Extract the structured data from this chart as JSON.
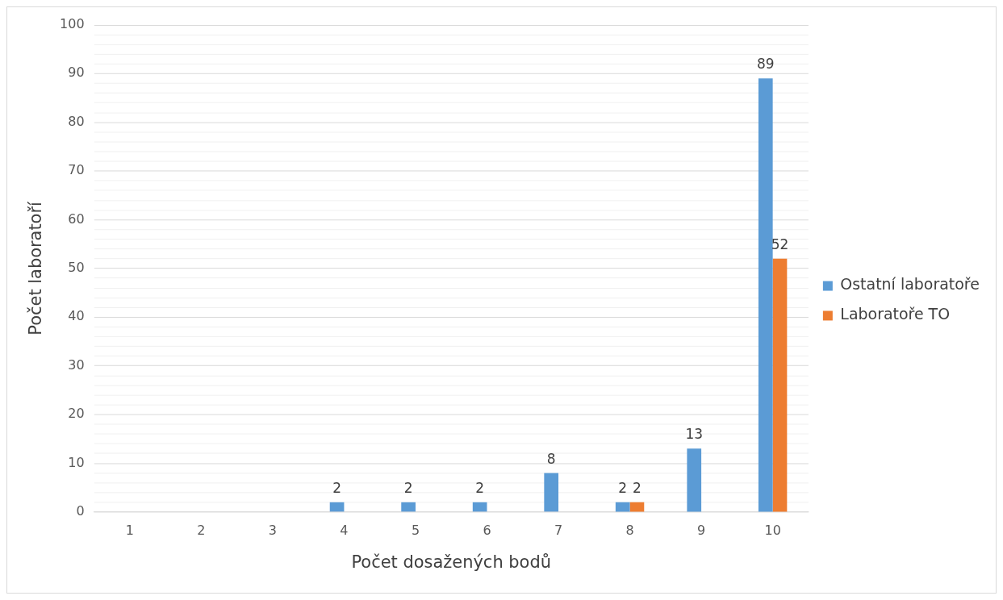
{
  "chart_data": {
    "type": "bar",
    "xlabel": "Počet dosažených bodů",
    "ylabel": "Počet laboratoří",
    "categories": [
      "1",
      "2",
      "3",
      "4",
      "5",
      "6",
      "7",
      "8",
      "9",
      "10"
    ],
    "series": [
      {
        "name": "Ostatní laboratoře",
        "color": "#5b9bd5",
        "values": [
          0,
          0,
          0,
          2,
          2,
          2,
          8,
          2,
          13,
          89
        ],
        "value_labels": [
          null,
          null,
          null,
          "2",
          "2",
          "2",
          "8",
          "2",
          "13",
          "89"
        ]
      },
      {
        "name": "Laboratoře TO",
        "color": "#ed7d31",
        "values": [
          0,
          0,
          0,
          0,
          0,
          0,
          0,
          2,
          0,
          52
        ],
        "value_labels": [
          null,
          null,
          null,
          null,
          null,
          null,
          null,
          "2",
          null,
          "52"
        ]
      }
    ],
    "ylim": [
      0,
      100
    ],
    "yticks": [
      0,
      {
        "value": 2,
        "label": null
      },
      {
        "value": 4,
        "label": null
      },
      {
        "value": 6,
        "label": null
      },
      {
        "value": 8,
        "label": null
      },
      10,
      {
        "value": 12,
        "label": null
      },
      {
        "value": 14,
        "label": null
      },
      {
        "value": 16,
        "label": null
      },
      {
        "value": 18,
        "label": null
      },
      20,
      {
        "value": 22,
        "label": null
      },
      {
        "value": 24,
        "label": null
      },
      {
        "value": 26,
        "label": null
      },
      {
        "value": 28,
        "label": null
      },
      30,
      {
        "value": 32,
        "label": null
      },
      {
        "value": 34,
        "label": null
      },
      {
        "value": 36,
        "label": null
      },
      {
        "value": 38,
        "label": null
      },
      40,
      {
        "value": 42,
        "label": null
      },
      {
        "value": 44,
        "label": null
      },
      {
        "value": 46,
        "label": null
      },
      {
        "value": 48,
        "label": null
      },
      50,
      {
        "value": 52,
        "label": null
      },
      {
        "value": 54,
        "label": null
      },
      {
        "value": 56,
        "label": null
      },
      {
        "value": 58,
        "label": null
      },
      60,
      {
        "value": 62,
        "label": null
      },
      {
        "value": 64,
        "label": null
      },
      {
        "value": 66,
        "label": null
      },
      {
        "value": 68,
        "label": null
      },
      70,
      {
        "value": 72,
        "label": null
      },
      {
        "value": 74,
        "label": null
      },
      {
        "value": 76,
        "label": null
      },
      {
        "value": 78,
        "label": null
      },
      80,
      {
        "value": 82,
        "label": null
      },
      {
        "value": 84,
        "label": null
      },
      {
        "value": 86,
        "label": null
      },
      {
        "value": 88,
        "label": null
      },
      90,
      {
        "value": 92,
        "label": null
      },
      {
        "value": 94,
        "label": null
      },
      {
        "value": 96,
        "label": null
      },
      {
        "value": 98,
        "label": null
      },
      100
    ],
    "grid": "y",
    "legend": "right"
  }
}
